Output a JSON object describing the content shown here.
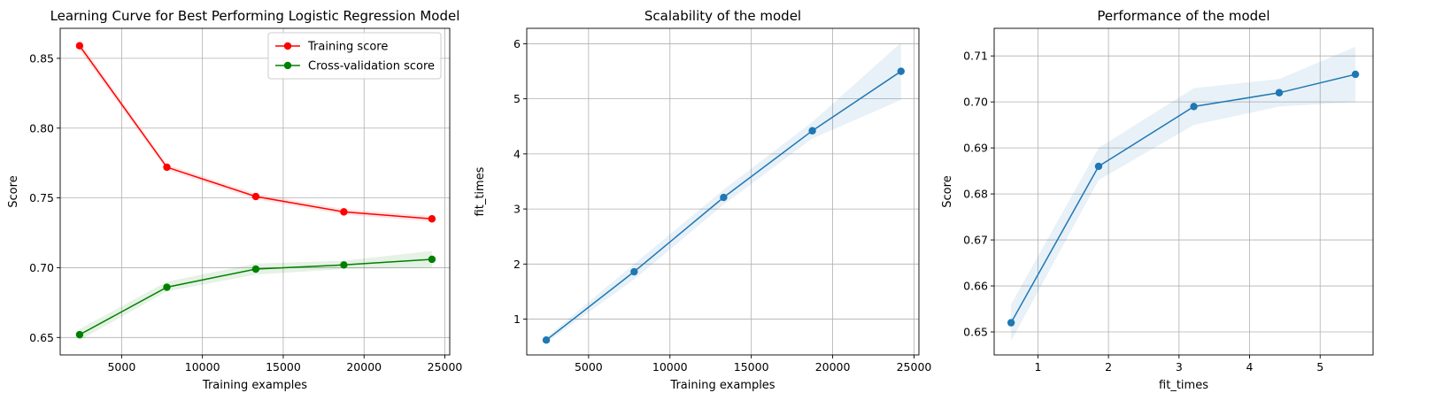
{
  "chart_data": [
    {
      "type": "line",
      "title": "Learning Curve for Best Performing Logistic Regression Model",
      "xlabel": "Training examples",
      "ylabel": "Score",
      "xlim": [
        1200,
        25300
      ],
      "ylim": [
        0.6375,
        0.8715
      ],
      "xticks": [
        5000,
        10000,
        15000,
        20000,
        25000
      ],
      "yticks": [
        0.65,
        0.7,
        0.75,
        0.8,
        0.85
      ],
      "grid": true,
      "legend": "top-right",
      "x": [
        2400,
        7800,
        13300,
        18750,
        24200
      ],
      "series": [
        {
          "name": "Training score",
          "color": "#ff0000",
          "values": [
            0.859,
            0.772,
            0.751,
            0.74,
            0.735
          ],
          "band_lower": [
            0.856,
            0.77,
            0.749,
            0.738,
            0.733
          ],
          "band_upper": [
            0.862,
            0.774,
            0.753,
            0.742,
            0.737
          ]
        },
        {
          "name": "Cross-validation score",
          "color": "#008000",
          "values": [
            0.652,
            0.686,
            0.699,
            0.702,
            0.706
          ],
          "band_lower": [
            0.648,
            0.683,
            0.695,
            0.699,
            0.7
          ],
          "band_upper": [
            0.656,
            0.69,
            0.703,
            0.705,
            0.712
          ]
        }
      ]
    },
    {
      "type": "line",
      "title": "Scalability of the model",
      "xlabel": "Training examples",
      "ylabel": "fit_times",
      "xlim": [
        1200,
        25300
      ],
      "ylim": [
        0.35,
        6.28
      ],
      "xticks": [
        5000,
        10000,
        15000,
        20000,
        25000
      ],
      "yticks": [
        1,
        2,
        3,
        4,
        5,
        6
      ],
      "grid": true,
      "x": [
        2400,
        7800,
        13300,
        18750,
        24200
      ],
      "series": [
        {
          "color": "#1f77b4",
          "values": [
            0.62,
            1.86,
            3.21,
            4.42,
            5.5
          ],
          "band_lower": [
            0.57,
            1.72,
            3.08,
            4.28,
            4.98
          ],
          "band_upper": [
            0.67,
            2.0,
            3.35,
            4.58,
            6.02
          ]
        }
      ]
    },
    {
      "type": "line",
      "title": "Performance of the model",
      "xlabel": "fit_times",
      "ylabel": "Score",
      "xlim": [
        0.38,
        5.75
      ],
      "ylim": [
        0.645,
        0.716
      ],
      "xticks": [
        1,
        2,
        3,
        4,
        5
      ],
      "yticks": [
        0.65,
        0.66,
        0.67,
        0.68,
        0.69,
        0.7,
        0.71
      ],
      "grid": true,
      "x": [
        0.62,
        1.86,
        3.21,
        4.42,
        5.5
      ],
      "series": [
        {
          "color": "#1f77b4",
          "values": [
            0.652,
            0.686,
            0.699,
            0.702,
            0.706
          ],
          "band_lower": [
            0.648,
            0.683,
            0.695,
            0.699,
            0.7
          ],
          "band_upper": [
            0.656,
            0.69,
            0.703,
            0.705,
            0.712
          ]
        }
      ]
    }
  ]
}
